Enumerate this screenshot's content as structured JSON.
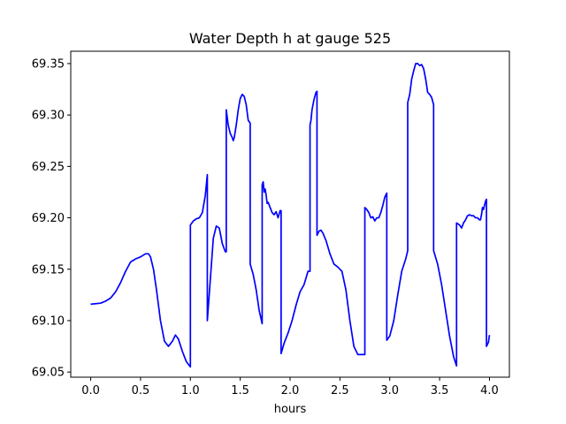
{
  "chart_data": {
    "type": "line",
    "title": "Water Depth h at gauge 525",
    "xlabel": "hours",
    "ylabel": "",
    "xlim": [
      -0.2,
      4.2
    ],
    "ylim": [
      69.045,
      69.362
    ],
    "grid": false,
    "x_ticks": [
      0.0,
      0.5,
      1.0,
      1.5,
      2.0,
      2.5,
      3.0,
      3.5,
      4.0
    ],
    "x_tick_labels": [
      "0.0",
      "0.5",
      "1.0",
      "1.5",
      "2.0",
      "2.5",
      "3.0",
      "3.5",
      "4.0"
    ],
    "y_ticks": [
      69.05,
      69.1,
      69.15,
      69.2,
      69.25,
      69.3,
      69.35
    ],
    "y_tick_labels": [
      "69.05",
      "69.10",
      "69.15",
      "69.20",
      "69.25",
      "69.30",
      "69.35"
    ],
    "series": [
      {
        "color": "#0000ff",
        "x": [
          0.0,
          0.1,
          0.15,
          0.2,
          0.25,
          0.3,
          0.35,
          0.4,
          0.45,
          0.5,
          0.55,
          0.58,
          0.6,
          0.63,
          0.66,
          0.7,
          0.74,
          0.78,
          0.82,
          0.85,
          0.88,
          0.92,
          0.96,
          1.0,
          1.0,
          1.03,
          1.06,
          1.09,
          1.12,
          1.15,
          1.17,
          1.17,
          1.2,
          1.23,
          1.26,
          1.29,
          1.32,
          1.35,
          1.36,
          1.36,
          1.38,
          1.4,
          1.42,
          1.43,
          1.44,
          1.46,
          1.48,
          1.5,
          1.52,
          1.54,
          1.56,
          1.58,
          1.6,
          1.6,
          1.63,
          1.66,
          1.69,
          1.72,
          1.72,
          1.73,
          1.74,
          1.75,
          1.76,
          1.77,
          1.78,
          1.8,
          1.82,
          1.84,
          1.86,
          1.88,
          1.9,
          1.91,
          1.91,
          1.94,
          1.98,
          2.02,
          2.06,
          2.1,
          2.14,
          2.18,
          2.2,
          2.2,
          2.21,
          2.22,
          2.24,
          2.26,
          2.27,
          2.27,
          2.29,
          2.31,
          2.33,
          2.36,
          2.4,
          2.44,
          2.48,
          2.52,
          2.56,
          2.6,
          2.64,
          2.68,
          2.72,
          2.75,
          2.75,
          2.77,
          2.79,
          2.81,
          2.83,
          2.85,
          2.87,
          2.89,
          2.91,
          2.93,
          2.95,
          2.97,
          2.97,
          3.0,
          3.04,
          3.08,
          3.12,
          3.16,
          3.18,
          3.18,
          3.2,
          3.22,
          3.24,
          3.26,
          3.28,
          3.3,
          3.32,
          3.34,
          3.36,
          3.38,
          3.4,
          3.42,
          3.44,
          3.44,
          3.48,
          3.52,
          3.56,
          3.6,
          3.64,
          3.67,
          3.67,
          3.7,
          3.72,
          3.74,
          3.76,
          3.78,
          3.8,
          3.82,
          3.84,
          3.86,
          3.88,
          3.9,
          3.91,
          3.92,
          3.93,
          3.94,
          3.95,
          3.96,
          3.97,
          3.97,
          3.99,
          4.0
        ],
        "y": [
          69.116,
          69.117,
          69.119,
          69.122,
          69.128,
          69.137,
          69.148,
          69.157,
          69.16,
          69.162,
          69.165,
          69.165,
          69.162,
          69.15,
          69.13,
          69.1,
          69.08,
          69.075,
          69.08,
          69.086,
          69.082,
          69.07,
          69.06,
          69.055,
          69.193,
          69.197,
          69.199,
          69.2,
          69.205,
          69.222,
          69.242,
          69.1,
          69.14,
          69.18,
          69.192,
          69.19,
          69.175,
          69.167,
          69.167,
          69.305,
          69.29,
          69.282,
          69.278,
          69.275,
          69.278,
          69.29,
          69.305,
          69.316,
          69.32,
          69.318,
          69.31,
          69.295,
          69.292,
          69.155,
          69.145,
          69.13,
          69.11,
          69.097,
          69.232,
          69.235,
          69.225,
          69.228,
          69.222,
          69.214,
          69.215,
          69.21,
          69.205,
          69.203,
          69.206,
          69.2,
          69.207,
          69.207,
          69.068,
          69.078,
          69.088,
          69.1,
          69.115,
          69.128,
          69.135,
          69.148,
          69.148,
          69.29,
          69.295,
          69.305,
          69.315,
          69.322,
          69.323,
          69.183,
          69.187,
          69.188,
          69.185,
          69.178,
          69.165,
          69.155,
          69.152,
          69.148,
          69.13,
          69.1,
          69.075,
          69.067,
          69.067,
          69.067,
          69.21,
          69.208,
          69.205,
          69.2,
          69.201,
          69.197,
          69.2,
          69.2,
          69.205,
          69.212,
          69.22,
          69.224,
          69.081,
          69.085,
          69.1,
          69.125,
          69.148,
          69.16,
          69.168,
          69.312,
          69.32,
          69.335,
          69.343,
          69.35,
          69.35,
          69.348,
          69.349,
          69.345,
          69.335,
          69.322,
          69.32,
          69.317,
          69.31,
          69.168,
          69.155,
          69.135,
          69.11,
          69.085,
          69.065,
          69.056,
          69.195,
          69.193,
          69.19,
          69.195,
          69.198,
          69.202,
          69.203,
          69.202,
          69.202,
          69.2,
          69.2,
          69.198,
          69.198,
          69.203,
          69.21,
          69.208,
          69.212,
          69.216,
          69.218,
          69.075,
          69.079,
          69.086
        ]
      }
    ]
  }
}
